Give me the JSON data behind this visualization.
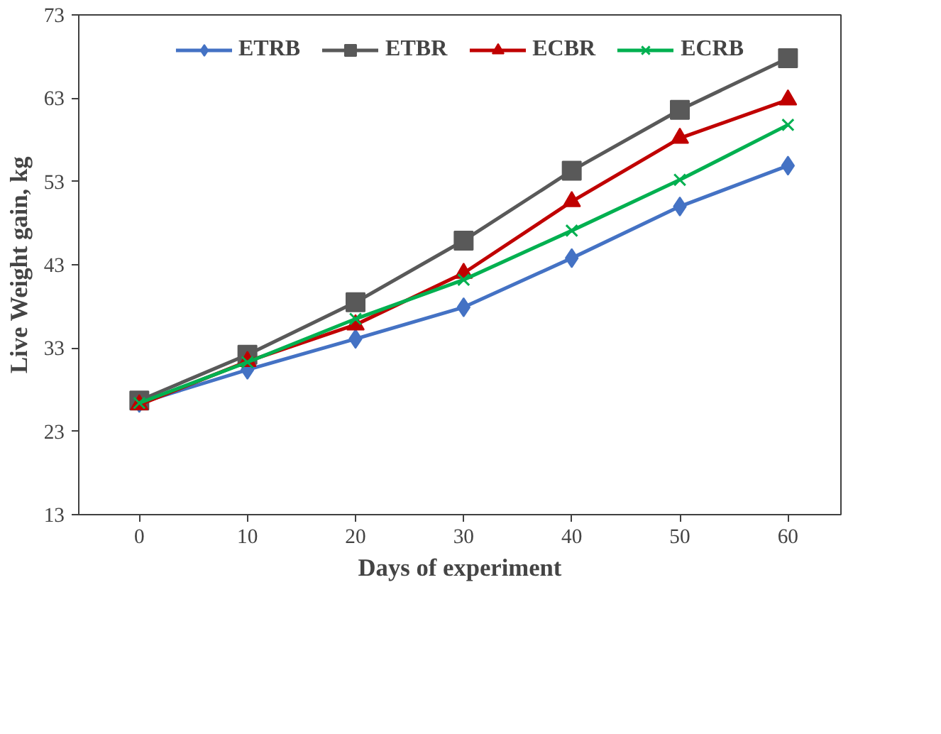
{
  "chart_data": {
    "type": "line",
    "xlabel": "Days of experiment",
    "ylabel": "Live Weight gain, kg",
    "x": [
      0,
      10,
      20,
      30,
      40,
      50,
      60
    ],
    "xlim": [
      -5.6,
      64.9
    ],
    "xticks": [
      0,
      10,
      20,
      30,
      40,
      50,
      60
    ],
    "ylim": [
      13,
      73
    ],
    "yticks": [
      13,
      23,
      33,
      43,
      53,
      63,
      73
    ],
    "grid": false,
    "legend": "top",
    "line_style": "solid",
    "series": [
      {
        "name": "ETRB",
        "color": "#4472c4",
        "marker": "diamond",
        "values": [
          26.4,
          30.4,
          34.1,
          37.9,
          43.8,
          50.0,
          54.9
        ]
      },
      {
        "name": "ETBR",
        "color": "#595959",
        "marker": "square",
        "values": [
          26.7,
          32.2,
          38.5,
          45.9,
          54.3,
          61.6,
          67.8
        ]
      },
      {
        "name": "ECBR",
        "color": "#c00000",
        "marker": "triangle",
        "values": [
          26.2,
          31.4,
          35.8,
          42.0,
          50.6,
          58.2,
          62.8
        ]
      },
      {
        "name": "ECRB",
        "color": "#00b050",
        "marker": "cross",
        "values": [
          26.4,
          31.3,
          36.5,
          41.2,
          47.1,
          53.2,
          59.8
        ]
      }
    ]
  }
}
